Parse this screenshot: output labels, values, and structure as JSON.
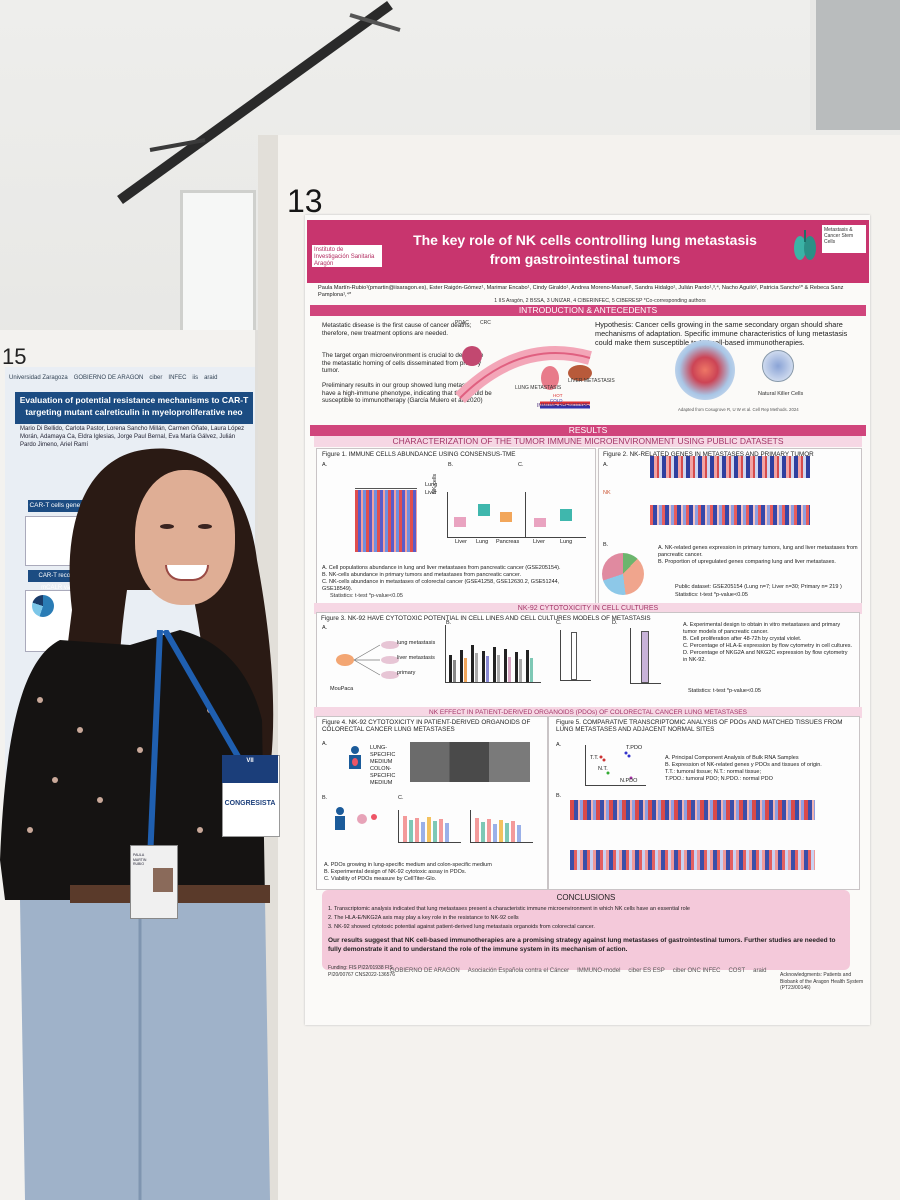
{
  "left_board": {
    "number": "15",
    "poster_logos": [
      "Universidad Zaragoza",
      "GOBIERNO DE ARAGON",
      "ciber",
      "INFEC",
      "iis",
      "araid"
    ],
    "poster_title_line1": "Evaluation of potential resistance mechanisms to CAR-T",
    "poster_title_line2": "targeting mutant calreticulin in myeloproliferative neo",
    "poster_authors": "Mario Di Bellido, Carlota Pastor, Lorena Sancho Millán, Carmen Oñate, Laura López Morán, Adamaya Ca, Eldra Iglesias, Jorge Paul Bernal, Eva María Gálvez, Julián Pardo Jimeno, Ariel Ramí",
    "section_label_1": "CAR-T cells generation",
    "section_label_2": "CAR-T recognises mCALR variants"
  },
  "right_board": {
    "number": "13"
  },
  "poster": {
    "logo_left": "Instituto de Investigación Sanitaria Aragón",
    "logo_right": "Metastasis & Cancer Stem Cells",
    "title_line1": "The key role of NK cells controlling lung metastasis",
    "title_line2": "from gastrointestinal tumors",
    "authors": "Paula Martín-Rubio¹(pmartin@iisaragon.es), Ester Raigón-Gómez¹, Marimar Encabo¹, Cindy Giraldo¹, Andrea Moreno-Manuel¹, Sandra Hidalgo¹, Julián Pardo¹,³,⁴, Nacho Aguiló², Patricia Sancho¹* & Rebeca Sanz Pamplona¹,⁴*",
    "affiliations": "1 IIS Aragón, 2 BSSA, 3 UNIZAR, 4 CIBERINFEC, 5 CIBERESP *Co-corresponding authors",
    "intro_header": "INTRODUCTION & ANTECEDENTS",
    "intro_bullets": [
      "Metastatic disease is the first cause of cancer deaths; therefore, new treatment options are needed.",
      "The target organ microenvironment is crucial to determine the metastatic homing of cells disseminated from primary tumor.",
      "Preliminary results in our group showed lung metastases have a high-immune phenotype, indicating that they could be susceptible to immunotherapy (García Mulero et al. 2020)"
    ],
    "hypothesis": "Hypothesis: Cancer cells growing in the same secondary organ should share mechanisms of adaptation. Specific immune characteristics of lung metastasis could make them susceptible to NK cell-based immunotherapies.",
    "intro_labels": {
      "pdac": "PDAC",
      "crc": "CRC",
      "lung_met": "LUNG METASTASIS",
      "liver_met": "LIVER METASTASIS",
      "immune": "IMMUNE PHENOTYPE",
      "hot": "HOT",
      "cold": "COLD"
    },
    "nk_label": "Natural Killer Cells",
    "adapted_from": "Adapted from Cosugrove R, U W et al. Cell Rep Methods. 2024",
    "results_header": "RESULTS",
    "section1_header": "CHARACTERIZATION OF THE TUMOR IMMUNE MICROENVIRONMENT USING PUBLIC DATASETS",
    "fig1": {
      "title": "Figure 1. IMMUNE CELLS ABUNDANCE USING CONSENSUS-TME",
      "panel_a": "A.",
      "panel_b": "B.",
      "panel_c": "C.",
      "legend_lung": "Lung",
      "legend_liver": "Liver",
      "xlabels_b": [
        "Liver",
        "Lung",
        "Pancreas"
      ],
      "xlabels_c": [
        "Liver",
        "Lung"
      ],
      "ylabel": "NK cells",
      "text_a": "A.  Cell populations abundance in lung and liver metastases from pancreatic cancer (GSE205154).",
      "text_b": "B.  NK-cells abundance in primary tumors and metastases from pancreatic cancer.",
      "text_c": "C.  NK-cells abundance in metastases of colorectal cancer (GSE41258, GSE12630.2, GSE51244, GSE18549).",
      "stat": "Statistics: t-test *p-value<0.05"
    },
    "fig2": {
      "title": "Figure 2. NK-RELATED GENES IN METASTASES AND PRIMARY TUMOR",
      "panel_a": "A.",
      "panel_b": "B.",
      "nk_label": "NK",
      "text_a": "A.  NK-related genes expression in primary tumors, lung and liver metastases from pancreatic cancer.",
      "text_b": "B.  Proportion of upregulated genes comparing lung and liver metastases.",
      "public": "Public dataset: GSE205154 (Lung n=7; Liver n=30; Primary n= 219 )",
      "stat": "Statistics: t-test *p-value<0.05"
    },
    "section2_header": "NK-92 CYTOTOXICITY IN CELL CULTURES",
    "fig3": {
      "title": "Figure 3. NK-92 HAVE CYTOTOXIC POTENTIAL IN CELL LINES AND CELL CULTURES MODELS OF METASTASIS",
      "panel_a": "A.",
      "panel_b": "B.",
      "panel_c": "C.",
      "panel_d": "D.",
      "cell_labels": [
        "lung metastasis",
        "liver metastasis",
        "primary"
      ],
      "source_label": "MouPaca",
      "text": [
        "A. Experimental design to obtain in vitro metastases and primary tumor models of pancreatic cancer.",
        "B. Cell proliferation after 48-72h by crystal violet.",
        "C. Percentage of HLA-E expression by flow cytometry in cell cultures.",
        "D. Percentage of NKG2A and NKG2C expression by flow cytometry in NK-92."
      ],
      "stat": "Statistics: t-test *p-value<0.05"
    },
    "section3_header": "NK EFFECT IN PATIENT-DERIVED ORGANOIDS (PDOs) OF COLORECTAL CANCER LUNG METASTASES",
    "fig4": {
      "title": "Figure 4. NK-92 CYTOTOXICITY IN PATIENT-DERIVED ORGANOIDS OF COLORECTAL CANCER LUNG METASTASES",
      "panel_a": "A.",
      "panel_b": "B.",
      "panel_c": "C.",
      "medium_lung": "LUNG-SPECIFIC MEDIUM",
      "medium_colon": "COLON-SPECIFIC MEDIUM",
      "text": [
        "A. PDOs growing in lung-specific medium and colon-specific medium",
        "B. Experimental design of NK-92 cytotoxic assay in PDOs.",
        "C. Viability of PDOs measure by CellTiter-Glo."
      ]
    },
    "fig5": {
      "title": "Figure 5. COMPARATIVE TRANSCRIPTOMIC ANALYSIS OF PDOs AND MATCHED TISSUES FROM LUNG METASTASES AND ADJACENT NORMAL SITES",
      "panel_a": "A.",
      "panel_b": "B.",
      "pca_labels": [
        "T.PDO",
        "T.T.",
        "N.T.",
        "N.PDO"
      ],
      "text": [
        "A. Principal Component Analysis of Bulk RNA Samples",
        "B. Expression of NK-related genes y PDOs and tissues of origin.",
        "T.T.: tumoral tissue; N.T.: normal tissue;",
        "T.PDO.: tumoral PDO; N.PDO.: normal PDO"
      ]
    },
    "conclusions": {
      "title": "CONCLUSIONS",
      "items": [
        "1.  Transcriptomic analysis indicated that lung metastases present a characteristic immune microenvironment in which NK cells have an essential role",
        "2.  The HLA-E/NKG2A axis may play a key role in the resistance to NK-92 cells",
        "3.  NK-92 showed cytotoxic potential against patient-derived lung metastasis organoids from colorectal cancer."
      ],
      "bold": "Our results suggest that NK cell-based immunotherapies are a promising strategy against lung metastases of gastrointestinal tumors. Further studies are needed to fully demonstrate it and to understand the role of the immune system in its mechanism of action."
    },
    "funding": "Funding: FIS PI22/01938 FIS PI20/00767 CNS2022-136576",
    "sponsors": [
      "GOBIERNO DE ARAGON",
      "Asociación Española contra el Cáncer",
      "IMMUNO-model",
      "ciber ES ESP",
      "ciber ONC INFEC",
      "COST",
      "araid"
    ],
    "acknowledgments": "Acknowledgments: Patients and Biobank of the Aragon Health System (PT23/00146)"
  },
  "badge": {
    "congress_label": "CONGRESISTA",
    "top": "VII",
    "id_name": "PAULA MARTIN RUBIO"
  },
  "colors": {
    "poster_magenta": "#c8356e",
    "section_pink": "#f6d7e4",
    "left_poster_blue": "#1c4c82"
  }
}
